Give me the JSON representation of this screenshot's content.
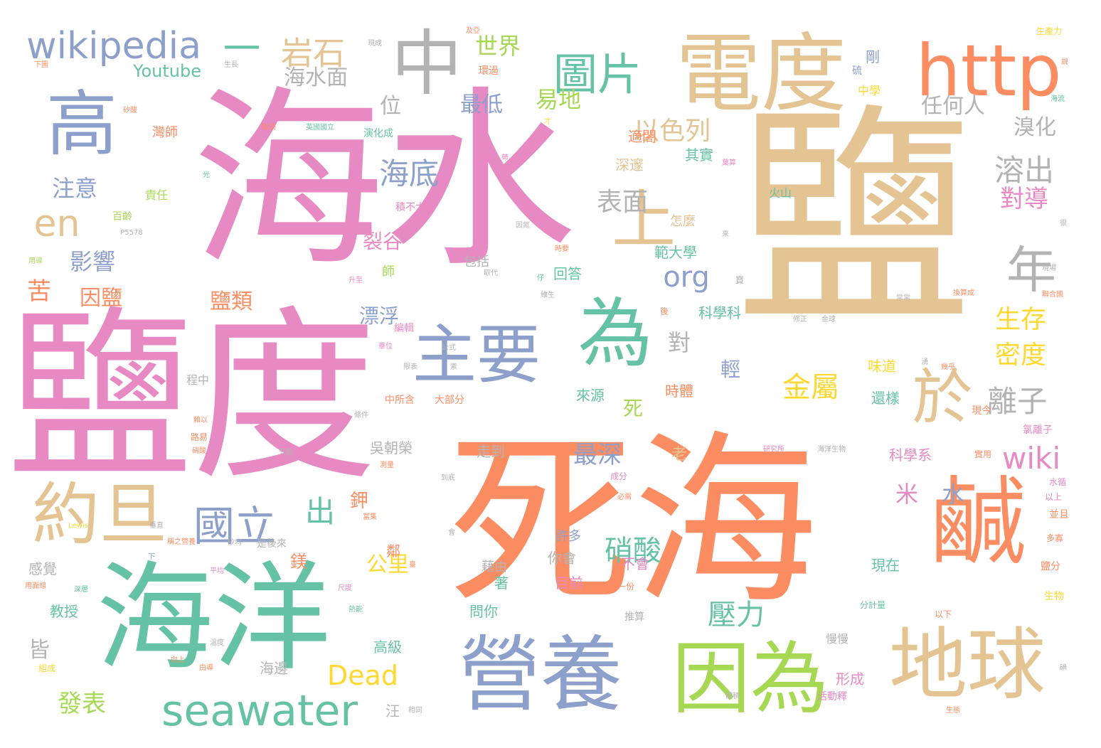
{
  "palette": {
    "pink": "#e78ac3",
    "orange": "#fc8d62",
    "tan": "#e5c494",
    "green": "#66c2a5",
    "blue": "#8da0cb",
    "gray": "#b3b3b3",
    "yellow": "#ffd92f",
    "lime": "#a6d854"
  },
  "words": [
    {
      "text": "海水",
      "color": "pink",
      "weight": 100
    },
    {
      "text": "鹽",
      "color": "tan",
      "weight": 96
    },
    {
      "text": "死海",
      "color": "orange",
      "weight": 92
    },
    {
      "text": "鹽度",
      "color": "pink",
      "weight": 88
    },
    {
      "text": "電度",
      "color": "tan",
      "weight": 60
    },
    {
      "text": "海洋",
      "color": "green",
      "weight": 62
    },
    {
      "text": "營養",
      "color": "blue",
      "weight": 50
    },
    {
      "text": "地球",
      "color": "tan",
      "weight": 48
    },
    {
      "text": "因為",
      "color": "lime",
      "weight": 46
    },
    {
      "text": "鹹",
      "color": "orange",
      "weight": 52
    },
    {
      "text": "高",
      "color": "blue",
      "weight": 44
    },
    {
      "text": "中",
      "color": "gray",
      "weight": 42
    },
    {
      "text": "http",
      "color": "orange",
      "weight": 40
    },
    {
      "text": "主要",
      "color": "blue",
      "weight": 40
    },
    {
      "text": "為",
      "color": "green",
      "weight": 40
    },
    {
      "text": "約旦",
      "color": "tan",
      "weight": 38
    },
    {
      "text": "於",
      "color": "tan",
      "weight": 36
    },
    {
      "text": "年",
      "color": "gray",
      "weight": 34
    },
    {
      "text": "上",
      "color": "tan",
      "weight": 34
    },
    {
      "text": "seawater",
      "color": "green",
      "weight": 28
    },
    {
      "text": "wikipedia",
      "color": "blue",
      "weight": 26
    },
    {
      "text": "圖片",
      "color": "green",
      "weight": 26
    },
    {
      "text": "國立",
      "color": "blue",
      "weight": 26
    },
    {
      "text": "en",
      "color": "tan",
      "weight": 24
    },
    {
      "text": "一",
      "color": "green",
      "weight": 24
    },
    {
      "text": "岩石",
      "color": "tan",
      "weight": 22
    },
    {
      "text": "海底",
      "color": "blue",
      "weight": 22
    },
    {
      "text": "出",
      "color": "green",
      "weight": 22
    },
    {
      "text": "org",
      "color": "blue",
      "weight": 20
    },
    {
      "text": "wiki",
      "color": "pink",
      "weight": 20
    },
    {
      "text": "硝酸",
      "color": "green",
      "weight": 20
    },
    {
      "text": "金屬",
      "color": "yellow",
      "weight": 20
    },
    {
      "text": "溶出",
      "color": "gray",
      "weight": 20
    },
    {
      "text": "離子",
      "color": "gray",
      "weight": 20
    },
    {
      "text": "壓力",
      "color": "green",
      "weight": 20
    },
    {
      "text": "表面",
      "color": "gray",
      "weight": 18
    },
    {
      "text": "以色列",
      "color": "tan",
      "weight": 18
    },
    {
      "text": "Dead",
      "color": "yellow",
      "weight": 18
    },
    {
      "text": "注意",
      "color": "blue",
      "weight": 18
    },
    {
      "text": "影響",
      "color": "blue",
      "weight": 18
    },
    {
      "text": "苦",
      "color": "orange",
      "weight": 18
    },
    {
      "text": "因鹽",
      "color": "orange",
      "weight": 16
    },
    {
      "text": "鹽類",
      "color": "orange",
      "weight": 18
    },
    {
      "text": "對導",
      "color": "pink",
      "weight": 18
    },
    {
      "text": "生存",
      "color": "yellow",
      "weight": 18
    },
    {
      "text": "密度",
      "color": "yellow",
      "weight": 18
    },
    {
      "text": "發表",
      "color": "lime",
      "weight": 16
    },
    {
      "text": "世界",
      "color": "lime",
      "weight": 16
    },
    {
      "text": "易地",
      "color": "lime",
      "weight": 16
    },
    {
      "text": "最低",
      "color": "blue",
      "weight": 14
    },
    {
      "text": "海水面",
      "color": "gray",
      "weight": 14
    },
    {
      "text": "位",
      "color": "gray",
      "weight": 16
    },
    {
      "text": "任何人",
      "color": "gray",
      "weight": 14
    },
    {
      "text": "溴化",
      "color": "gray",
      "weight": 14
    },
    {
      "text": "最深",
      "color": "blue",
      "weight": 16
    },
    {
      "text": "公里",
      "color": "yellow",
      "weight": 14
    },
    {
      "text": "對",
      "color": "gray",
      "weight": 16
    },
    {
      "text": "死",
      "color": "lime",
      "weight": 14
    },
    {
      "text": "米",
      "color": "pink",
      "weight": 16
    },
    {
      "text": "水",
      "color": "blue",
      "weight": 16
    },
    {
      "text": "皆",
      "color": "gray",
      "weight": 16
    },
    {
      "text": "漂浮",
      "color": "blue",
      "weight": 14
    },
    {
      "text": "裂谷",
      "color": "pink",
      "weight": 14
    },
    {
      "text": "輕",
      "color": "blue",
      "weight": 14
    },
    {
      "text": "鉀",
      "color": "orange",
      "weight": 14
    },
    {
      "text": "鎂",
      "color": "orange",
      "weight": 12
    },
    {
      "text": "Youtube",
      "color": "green",
      "weight": 11
    },
    {
      "text": "來源",
      "color": "green",
      "weight": 10
    },
    {
      "text": "時體",
      "color": "orange",
      "weight": 10
    },
    {
      "text": "吳朝榮",
      "color": "gray",
      "weight": 10
    },
    {
      "text": "走到",
      "color": "gray",
      "weight": 10
    },
    {
      "text": "味道",
      "color": "yellow",
      "weight": 10
    },
    {
      "text": "還樣",
      "color": "green",
      "weight": 10
    },
    {
      "text": "科學系",
      "color": "pink",
      "weight": 10
    },
    {
      "text": "現在",
      "color": "green",
      "weight": 10
    },
    {
      "text": "形成",
      "color": "pink",
      "weight": 10
    },
    {
      "text": "高級",
      "color": "green",
      "weight": 10
    },
    {
      "text": "海邊",
      "color": "gray",
      "weight": 10
    },
    {
      "text": "教授",
      "color": "green",
      "weight": 10
    },
    {
      "text": "感覺",
      "color": "gray",
      "weight": 10
    },
    {
      "text": "問你",
      "color": "green",
      "weight": 10
    },
    {
      "text": "你會",
      "color": "gray",
      "weight": 10
    },
    {
      "text": "目前",
      "color": "pink",
      "weight": 10
    },
    {
      "text": "不會",
      "color": "pink",
      "weight": 10
    },
    {
      "text": "著",
      "color": "green",
      "weight": 10
    },
    {
      "text": "回答",
      "color": "green",
      "weight": 10
    },
    {
      "text": "科學科",
      "color": "green",
      "weight": 10
    },
    {
      "text": "範大學",
      "color": "green",
      "weight": 10
    },
    {
      "text": "怎麼",
      "color": "tan",
      "weight": 10
    },
    {
      "text": "深邃",
      "color": "tan",
      "weight": 10
    },
    {
      "text": "其實",
      "color": "green",
      "weight": 10
    },
    {
      "text": "適閤",
      "color": "orange",
      "weight": 10
    },
    {
      "text": "中學",
      "color": "yellow",
      "weight": 8
    },
    {
      "text": "剛",
      "color": "blue",
      "weight": 10
    },
    {
      "text": "火山",
      "color": "green",
      "weight": 8
    },
    {
      "text": "許多",
      "color": "blue",
      "weight": 9
    },
    {
      "text": "大部分",
      "color": "orange",
      "weight": 7
    },
    {
      "text": "中所含",
      "color": "orange",
      "weight": 7
    },
    {
      "text": "演化成",
      "color": "green",
      "weight": 7
    },
    {
      "text": "環過",
      "color": "orange",
      "weight": 7
    },
    {
      "text": "積不大",
      "color": "pink",
      "weight": 7
    },
    {
      "text": "師",
      "color": "lime",
      "weight": 8
    },
    {
      "text": "編輯",
      "color": "pink",
      "weight": 7
    },
    {
      "text": "責任",
      "color": "lime",
      "weight": 8
    },
    {
      "text": "百齡",
      "color": "lime",
      "weight": 7
    },
    {
      "text": "灣師",
      "color": "orange",
      "weight": 8
    },
    {
      "text": "程中",
      "color": "gray",
      "weight": 8
    },
    {
      "text": "是後來",
      "color": "gray",
      "weight": 7
    },
    {
      "text": "現今",
      "color": "orange",
      "weight": 7
    },
    {
      "text": "氯離子",
      "color": "pink",
      "weight": 7
    },
    {
      "text": "研究所",
      "color": "pink",
      "weight": 6
    },
    {
      "text": "海洋生物",
      "color": "gray",
      "weight": 6
    },
    {
      "text": "水循",
      "color": "pink",
      "weight": 6
    },
    {
      "text": "以上",
      "color": "pink",
      "weight": 6
    },
    {
      "text": "並且",
      "color": "orange",
      "weight": 6
    },
    {
      "text": "多寡",
      "color": "orange",
      "weight": 6
    },
    {
      "text": "鹽分",
      "color": "orange",
      "weight": 6
    },
    {
      "text": "生物",
      "color": "yellow",
      "weight": 6
    },
    {
      "text": "以下",
      "color": "orange",
      "weight": 6
    },
    {
      "text": "分計量",
      "color": "green",
      "weight": 6
    },
    {
      "text": "慢慢",
      "color": "gray",
      "weight": 7
    },
    {
      "text": "活動釋",
      "color": "pink",
      "weight": 6
    },
    {
      "text": "成分",
      "color": "pink",
      "weight": 6
    },
    {
      "text": "必需",
      "color": "orange",
      "weight": 5
    },
    {
      "text": "老",
      "color": "tan",
      "weight": 8
    },
    {
      "text": "實用",
      "color": "orange",
      "weight": 6
    },
    {
      "text": "條件",
      "color": "gray",
      "weight": 6
    },
    {
      "text": "到底",
      "color": "gray",
      "weight": 5
    },
    {
      "text": "稱之營養",
      "color": "orange",
      "weight": 5
    },
    {
      "text": "下",
      "color": "blue",
      "weight": 6
    },
    {
      "text": "平均",
      "color": "pink",
      "weight": 5
    },
    {
      "text": "尺度",
      "color": "pink",
      "weight": 5
    },
    {
      "text": "熱能",
      "color": "green",
      "weight": 5
    },
    {
      "text": "推算",
      "color": "gray",
      "weight": 6
    },
    {
      "text": "一份",
      "color": "orange",
      "weight": 6
    },
    {
      "text": "相同",
      "color": "gray",
      "weight": 5
    },
    {
      "text": "汪",
      "color": "gray",
      "weight": 8
    },
    {
      "text": "由導",
      "color": "orange",
      "weight": 5
    },
    {
      "text": "向上",
      "color": "orange",
      "weight": 5
    },
    {
      "text": "溫度",
      "color": "gray",
      "weight": 5
    },
    {
      "text": "組成",
      "color": "yellow",
      "weight": 6
    },
    {
      "text": "用面組",
      "color": "orange",
      "weight": 5
    },
    {
      "text": "深層",
      "color": "green",
      "weight": 5
    },
    {
      "text": "路易",
      "color": "orange",
      "weight": 6
    },
    {
      "text": "硝酸",
      "color": "orange",
      "weight": 5
    },
    {
      "text": "賴以",
      "color": "orange",
      "weight": 5
    },
    {
      "text": "只能",
      "color": "gray",
      "weight": 5
    },
    {
      "text": "矽均",
      "color": "gray",
      "weight": 5
    },
    {
      "text": "垂直",
      "color": "gray",
      "weight": 5
    },
    {
      "text": "Lewis",
      "color": "yellow",
      "weight": 5
    },
    {
      "text": "升至",
      "color": "pink",
      "weight": 5
    },
    {
      "text": "用導",
      "color": "lime",
      "weight": 5
    },
    {
      "text": "P5578",
      "color": "gray",
      "weight": 5
    },
    {
      "text": "光",
      "color": "green",
      "weight": 5
    },
    {
      "text": "取決",
      "color": "orange",
      "weight": 5
    },
    {
      "text": "英國國立",
      "color": "green",
      "weight": 5
    },
    {
      "text": "矽酸",
      "color": "orange",
      "weight": 5
    },
    {
      "text": "下圖",
      "color": "orange",
      "weight": 5
    },
    {
      "text": "生長",
      "color": "gray",
      "weight": 5
    },
    {
      "text": "現成",
      "color": "gray",
      "weight": 5
    },
    {
      "text": "及亞",
      "color": "orange",
      "weight": 5
    },
    {
      "text": "生產力",
      "color": "yellow",
      "weight": 5
    },
    {
      "text": "硫",
      "color": "blue",
      "weight": 6
    },
    {
      "text": "說",
      "color": "orange",
      "weight": 5
    },
    {
      "text": "海流",
      "color": "green",
      "weight": 5
    },
    {
      "text": "葉算",
      "color": "pink",
      "weight": 5
    },
    {
      "text": "因氮",
      "color": "gray",
      "weight": 5
    },
    {
      "text": "時要",
      "color": "orange",
      "weight": 5
    },
    {
      "text": "取代",
      "color": "gray",
      "weight": 5
    },
    {
      "text": "仔",
      "color": "green",
      "weight": 7
    },
    {
      "text": "包括",
      "color": "gray",
      "weight": 5
    },
    {
      "text": "維生",
      "color": "gray",
      "weight": 6
    },
    {
      "text": "後",
      "color": "orange",
      "weight": 5
    },
    {
      "text": "修正",
      "color": "gray",
      "weight": 5
    },
    {
      "text": "金球",
      "color": "gray",
      "weight": 5
    },
    {
      "text": "常常",
      "color": "gray",
      "weight": 5
    },
    {
      "text": "換算成",
      "color": "orange",
      "weight": 5
    },
    {
      "text": "聯合國",
      "color": "orange",
      "weight": 5
    },
    {
      "text": "現場",
      "color": "gray",
      "weight": 6
    },
    {
      "text": "寶",
      "color": "gray",
      "weight": 5
    },
    {
      "text": "來",
      "color": "gray",
      "weight": 5
    },
    {
      "text": "很",
      "color": "gray",
      "weight": 5
    },
    {
      "text": "湧",
      "color": "gray",
      "weight": 5
    },
    {
      "text": "幾乎",
      "color": "orange",
      "weight": 5
    },
    {
      "text": "華位",
      "color": "pink",
      "weight": 5
    },
    {
      "text": "公式",
      "color": "gray",
      "weight": 5
    },
    {
      "text": "限表",
      "color": "gray",
      "weight": 5
    },
    {
      "text": "素",
      "color": "gray",
      "weight": 5
    },
    {
      "text": "富集",
      "color": "orange",
      "weight": 5
    },
    {
      "text": "臺",
      "color": "orange",
      "weight": 7
    },
    {
      "text": "藉由",
      "color": "gray",
      "weight": 5
    },
    {
      "text": "測量",
      "color": "orange",
      "weight": 5
    },
    {
      "text": "會",
      "color": "gray",
      "weight": 5
    },
    {
      "text": "體積",
      "color": "gray",
      "weight": 5
    },
    {
      "text": "碘",
      "color": "gray",
      "weight": 5
    },
    {
      "text": "才",
      "color": "yellow",
      "weight": 5
    },
    {
      "text": "帶",
      "color": "pink",
      "weight": 8
    },
    {
      "text": "鄰",
      "color": "orange",
      "weight": 5
    },
    {
      "text": "生態",
      "color": "orange",
      "weight": 5
    }
  ]
}
